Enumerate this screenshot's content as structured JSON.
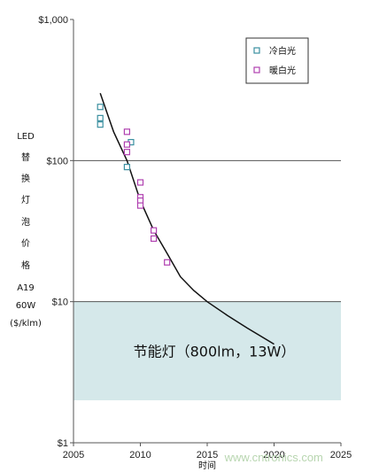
{
  "chart_data": {
    "type": "scatter",
    "xlabel": "时间",
    "ylabel_lines": [
      "LED",
      "替",
      "换",
      "灯",
      "泡",
      "价",
      "格",
      "A19",
      "60W",
      "($/klm)"
    ],
    "xlim": [
      2005,
      2025
    ],
    "ylim": [
      1,
      1000
    ],
    "y_scale": "log",
    "x_ticks": [
      "2005",
      "2010",
      "2015",
      "2020",
      "2025"
    ],
    "y_ticks": [
      {
        "value": 1,
        "label": "$1"
      },
      {
        "value": 10,
        "label": "$10"
      },
      {
        "value": 100,
        "label": "$100"
      },
      {
        "value": 1000,
        "label": "$1,000"
      }
    ],
    "legend_position": "top-right",
    "series": [
      {
        "name": "冷白光",
        "color": "#3a8fa0",
        "points": [
          [
            2007,
            240
          ],
          [
            2007,
            200
          ],
          [
            2007,
            180
          ],
          [
            2009,
            90
          ],
          [
            2009.3,
            135
          ]
        ]
      },
      {
        "name": "暖白光",
        "color": "#b040b0",
        "points": [
          [
            2009,
            160
          ],
          [
            2009,
            130
          ],
          [
            2009,
            115
          ],
          [
            2010,
            70
          ],
          [
            2010,
            55
          ],
          [
            2010,
            52
          ],
          [
            2010,
            48
          ],
          [
            2011,
            32
          ],
          [
            2011,
            28
          ],
          [
            2012,
            19
          ]
        ]
      }
    ],
    "trend": {
      "color": "#111111",
      "points": [
        [
          2007,
          300
        ],
        [
          2008,
          160
        ],
        [
          2009,
          100
        ],
        [
          2010,
          52
        ],
        [
          2011,
          32
        ],
        [
          2012,
          22
        ],
        [
          2013,
          15
        ],
        [
          2014,
          12
        ],
        [
          2015,
          10
        ],
        [
          2016.5,
          8
        ],
        [
          2018,
          6.5
        ],
        [
          2020,
          5
        ]
      ]
    },
    "band": {
      "y_min": 2,
      "y_max": 10,
      "color": "#d5e8ea",
      "label": "节能灯（800lm，13W）"
    },
    "hlines": [
      100,
      10
    ],
    "watermark": "www.cntronics.com"
  }
}
